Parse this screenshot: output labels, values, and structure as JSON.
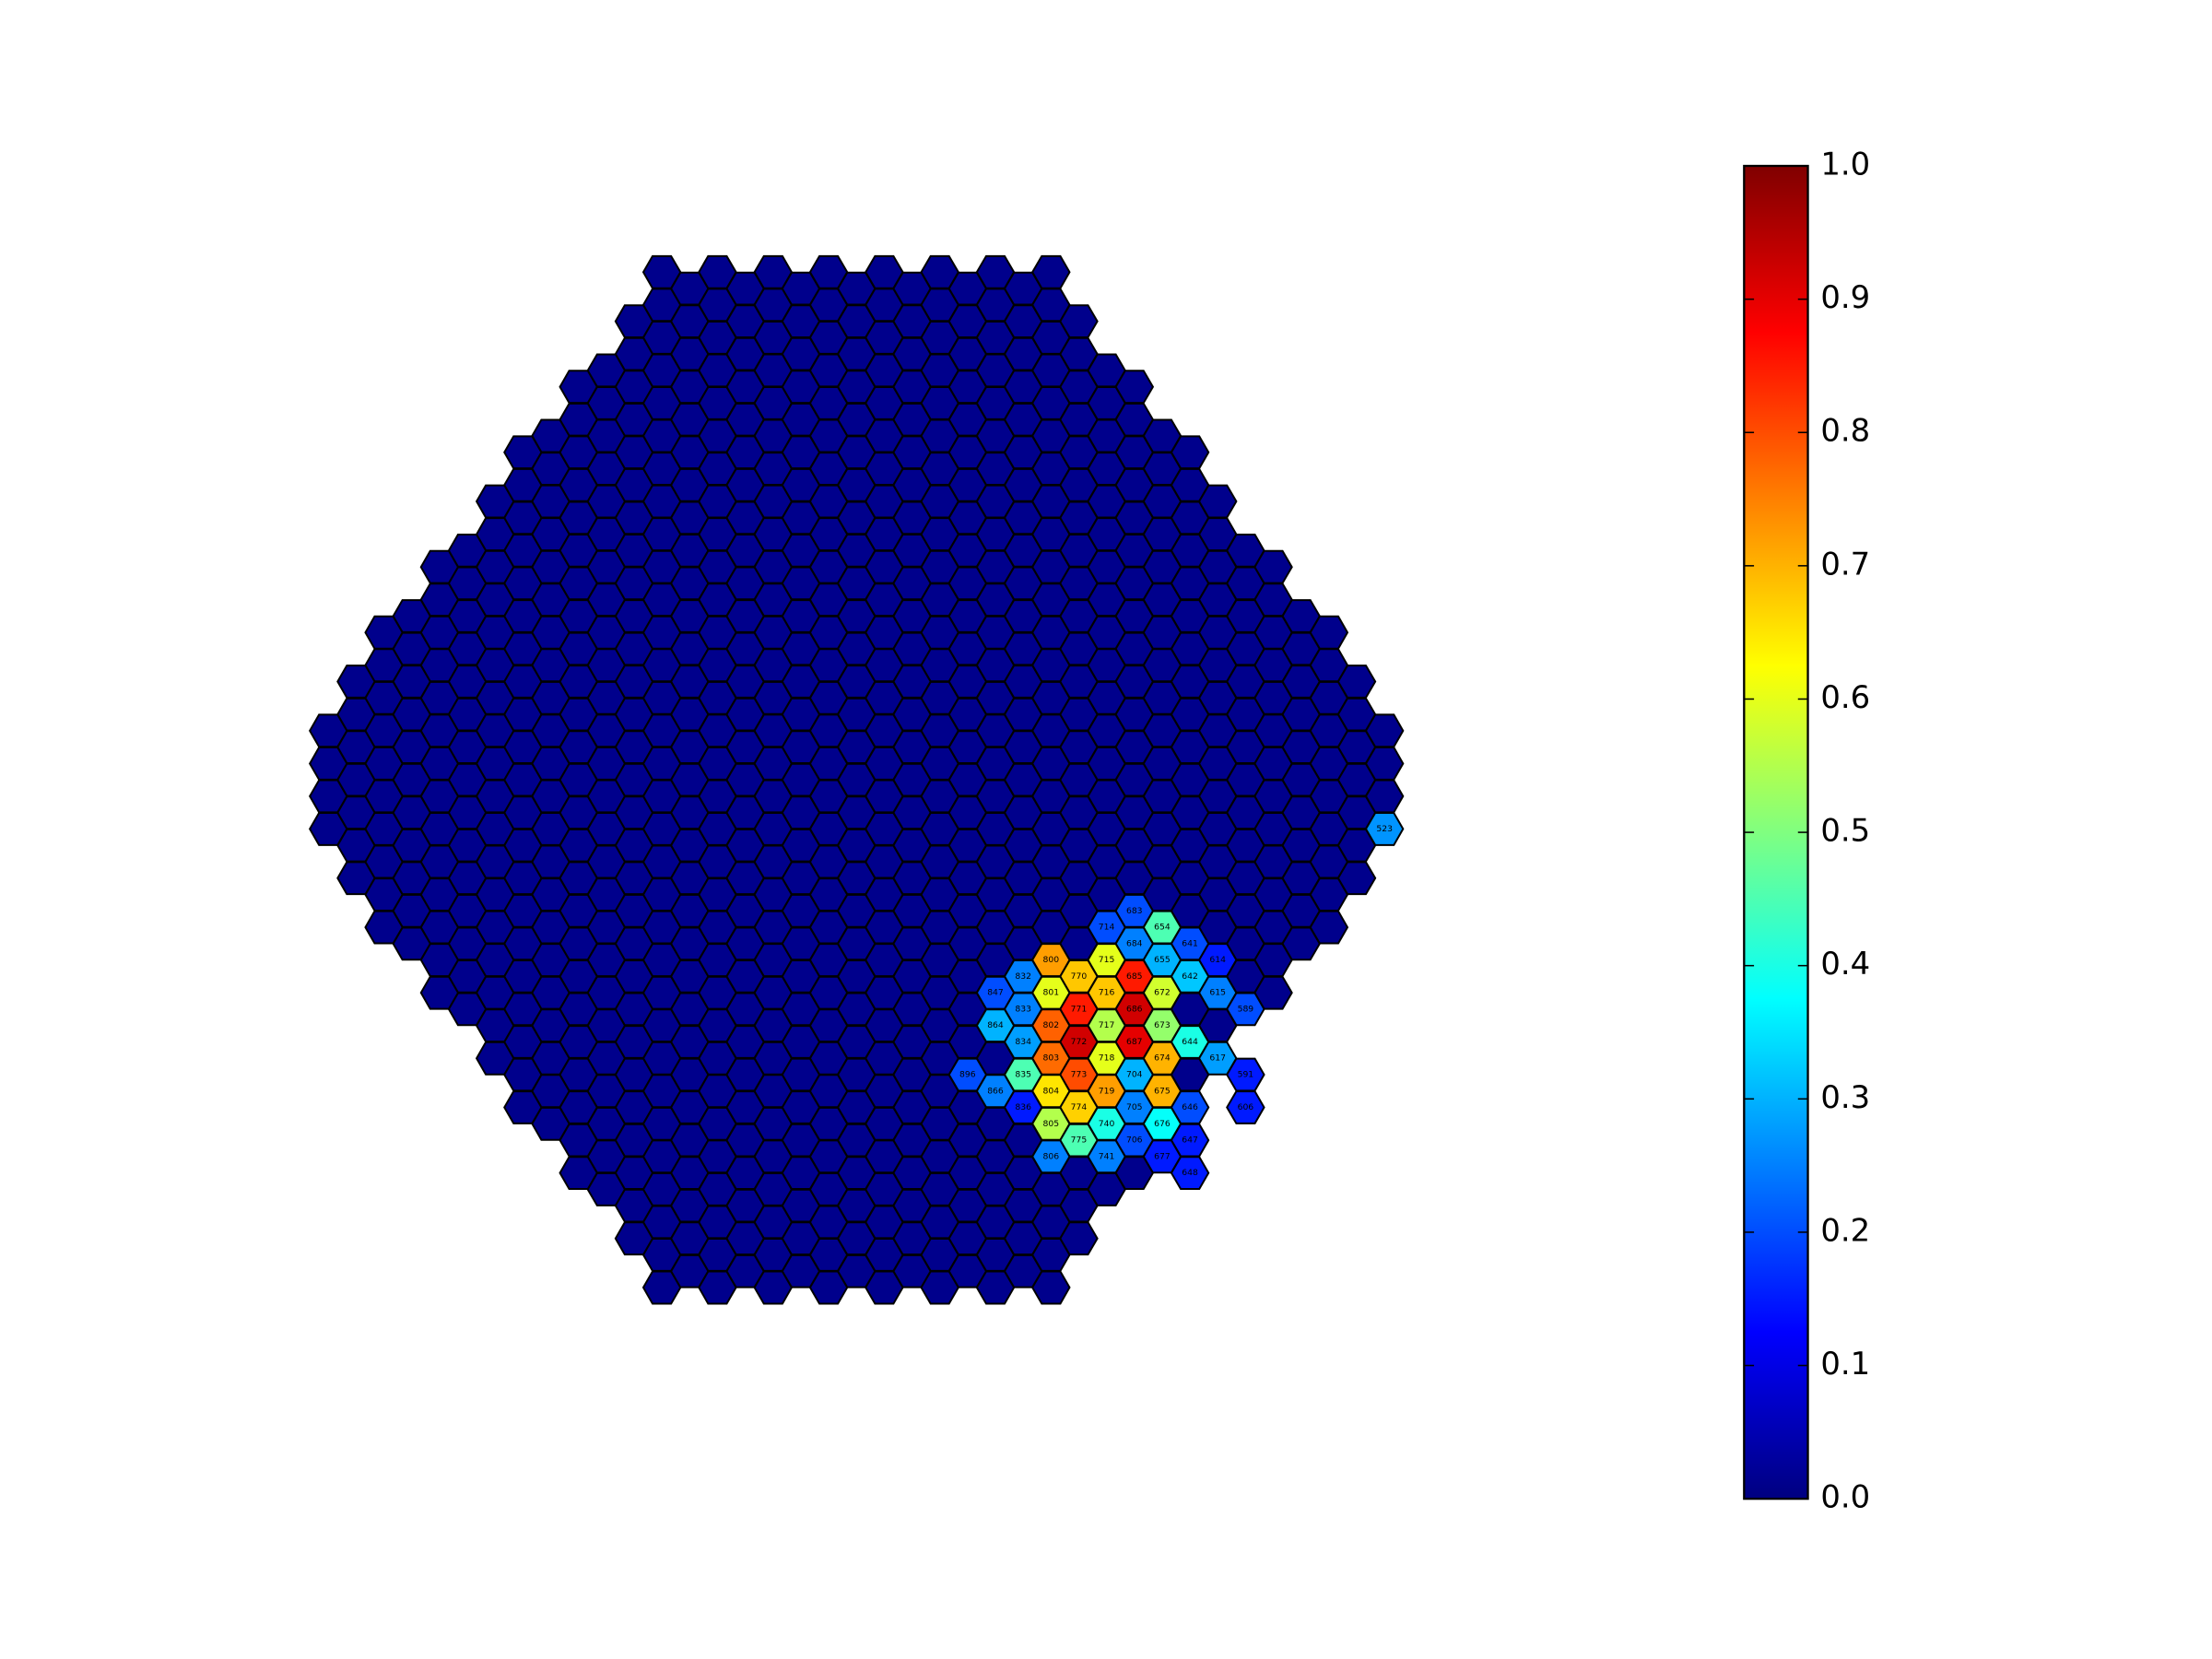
{
  "chart_data": {
    "type": "hexmap",
    "clim": [
      0,
      1
    ],
    "colorbar_ticks": [
      {
        "value": 0,
        "label": "0.0"
      },
      0.1,
      0.2,
      0.3,
      0.4,
      0.5,
      0.6,
      0.7,
      0.8,
      0.9,
      {
        "value": 1,
        "label": "1.0"
      }
    ],
    "colormap": "jet",
    "pixels": [
      {
        "label": "654",
        "value": 0.45
      },
      {
        "label": "684",
        "value": 0.25
      },
      {
        "label": "641",
        "value": 0.2
      },
      {
        "label": "714",
        "value": 0.2
      },
      {
        "label": "683",
        "value": 0.2
      },
      {
        "label": "715",
        "value": 0.6
      },
      {
        "label": "800",
        "value": 0.72
      },
      {
        "label": "655",
        "value": 0.3
      },
      {
        "label": "614",
        "value": 0.15
      },
      {
        "label": "770",
        "value": 0.68
      },
      {
        "label": "685",
        "value": 0.85
      },
      {
        "label": "832",
        "value": 0.25
      },
      {
        "label": "642",
        "value": 0.32
      },
      {
        "label": "801",
        "value": 0.6
      },
      {
        "label": "716",
        "value": 0.68
      },
      {
        "label": "672",
        "value": 0.58
      },
      {
        "label": "847",
        "value": 0.2
      },
      {
        "label": "615",
        "value": 0.25
      },
      {
        "label": "771",
        "value": 0.85
      },
      {
        "label": "686",
        "value": 0.92
      },
      {
        "label": "833",
        "value": 0.25
      },
      {
        "label": "589",
        "value": 0.2
      },
      {
        "label": "802",
        "value": 0.78
      },
      {
        "label": "717",
        "value": 0.55
      },
      {
        "label": "673",
        "value": 0.52
      },
      {
        "label": "864",
        "value": 0.3
      },
      {
        "label": "772",
        "value": 0.92
      },
      {
        "label": "687",
        "value": 0.9
      },
      {
        "label": "834",
        "value": 0.28
      },
      {
        "label": "644",
        "value": 0.4
      },
      {
        "label": "803",
        "value": 0.77
      },
      {
        "label": "718",
        "value": 0.6
      },
      {
        "label": "674",
        "value": 0.7
      },
      {
        "label": "617",
        "value": 0.28
      },
      {
        "label": "835",
        "value": 0.45
      },
      {
        "label": "773",
        "value": 0.8
      },
      {
        "label": "704",
        "value": 0.3
      },
      {
        "label": "866",
        "value": 0.25
      },
      {
        "label": "804",
        "value": 0.65
      },
      {
        "label": "719",
        "value": 0.72
      },
      {
        "label": "675",
        "value": 0.7
      },
      {
        "label": "591",
        "value": 0.15
      },
      {
        "label": "896",
        "value": 0.2
      },
      {
        "label": "774",
        "value": 0.67
      },
      {
        "label": "705",
        "value": 0.25
      },
      {
        "label": "836",
        "value": 0.15
      },
      {
        "label": "646",
        "value": 0.2
      },
      {
        "label": "805",
        "value": 0.55
      },
      {
        "label": "740",
        "value": 0.4
      },
      {
        "label": "676",
        "value": 0.38
      },
      {
        "label": "775",
        "value": 0.45
      },
      {
        "label": "706",
        "value": 0.2
      },
      {
        "label": "647",
        "value": 0.15
      },
      {
        "label": "806",
        "value": 0.25
      },
      {
        "label": "741",
        "value": 0.25
      },
      {
        "label": "677",
        "value": 0.15
      },
      {
        "label": "648",
        "value": 0.15
      },
      {
        "label": "523",
        "value": 0.27
      },
      {
        "label": "606",
        "value": 0.15
      }
    ]
  }
}
